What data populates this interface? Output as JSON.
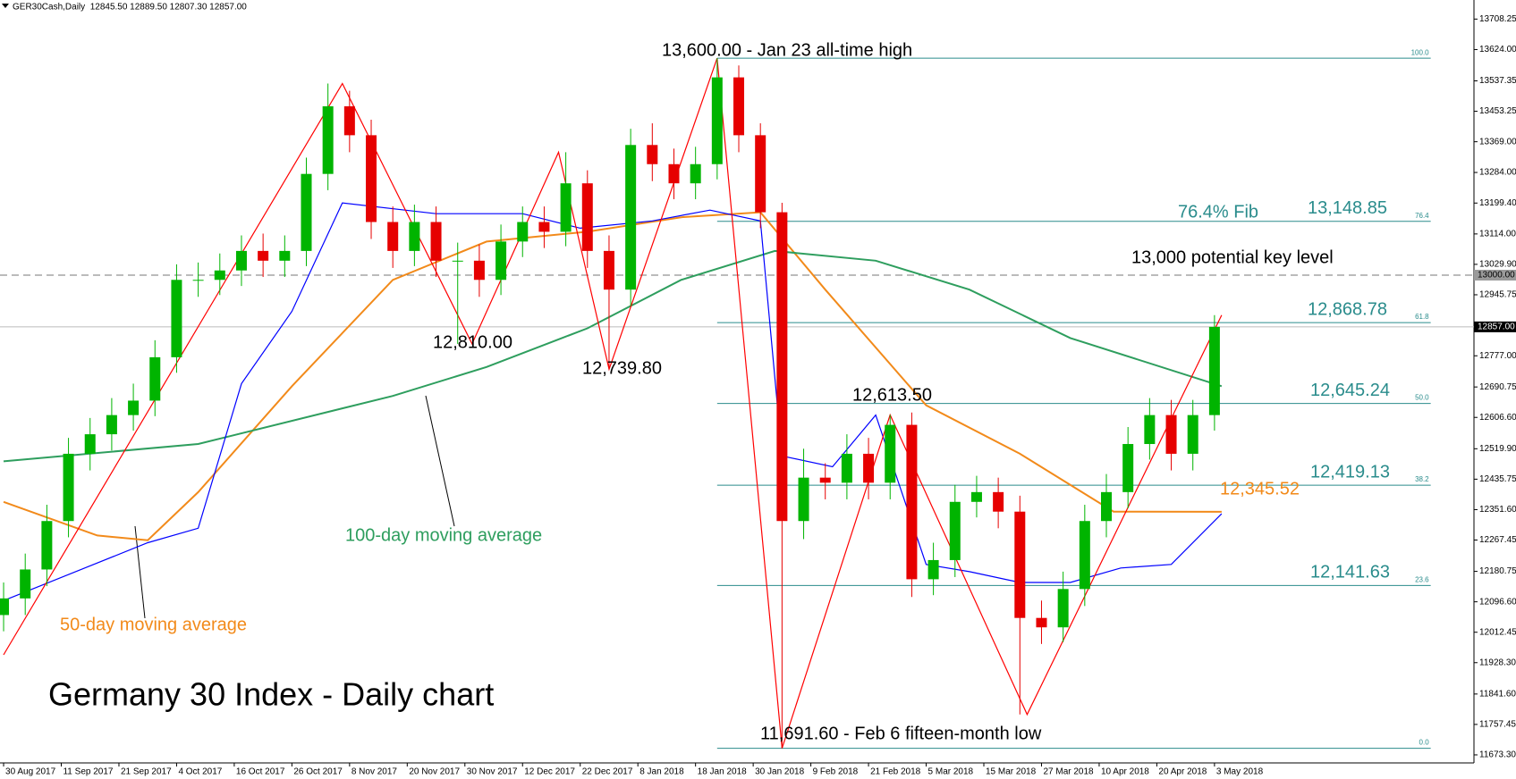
{
  "chart_data": {
    "type": "candlestick",
    "title": "Germany 30 Index - Daily chart",
    "header": "GER30Cash,Daily  12845.50 12889.50 12807.30 12857.00",
    "up_color": "#00b400",
    "down_color": "#e60000",
    "x": [
      0,
      3,
      6,
      9,
      12,
      15,
      18,
      21,
      24,
      27,
      30,
      33,
      36,
      39,
      42,
      45,
      48,
      51,
      54,
      57,
      60,
      63,
      66,
      69,
      72,
      75,
      78,
      81,
      84,
      87,
      90,
      93,
      96,
      99,
      102,
      105,
      108,
      111,
      114,
      117,
      120,
      123,
      126,
      129,
      132,
      135,
      138,
      141,
      144,
      147,
      150,
      153,
      156,
      159,
      162,
      165,
      168
    ],
    "open": [
      12060,
      12106,
      12186,
      12320,
      12506,
      12560,
      12613,
      12653,
      12773,
      12987,
      12987,
      13013,
      13067,
      13040,
      13067,
      13280,
      13467,
      13387,
      13147,
      13067,
      13147,
      13040,
      13040,
      12987,
      13093,
      13147,
      13120,
      13254,
      13067,
      12960,
      13360,
      13307,
      13254,
      13307,
      13547,
      13387,
      13174,
      12320,
      12440,
      12426,
      12506,
      12426,
      12586,
      12159,
      12212,
      12373,
      12400,
      12346,
      12052,
      12026,
      12132,
      12320,
      12400,
      12533,
      12613,
      12506,
      12613
    ],
    "high": [
      12150,
      12230,
      12365,
      12550,
      12605,
      12660,
      12700,
      12820,
      13030,
      13035,
      13060,
      13110,
      13115,
      13110,
      13325,
      13530,
      13510,
      13430,
      13190,
      13195,
      13190,
      13090,
      13085,
      13140,
      13190,
      13190,
      13340,
      13290,
      13110,
      13405,
      13420,
      13350,
      13355,
      13600,
      13580,
      13420,
      13200,
      12520,
      12480,
      12560,
      12550,
      12613.5,
      12620,
      12260,
      12420,
      12445,
      12440,
      12390,
      12100,
      12180,
      12365,
      12450,
      12580,
      12660,
      12655,
      12655,
      12889.5
    ],
    "low": [
      12015,
      12060,
      12140,
      12275,
      12460,
      12515,
      12570,
      12610,
      12730,
      12940,
      12945,
      12970,
      12995,
      12995,
      13025,
      13235,
      13340,
      13100,
      13020,
      13025,
      12995,
      12810,
      12940,
      12945,
      13050,
      13075,
      13080,
      13020,
      12739.8,
      12915,
      13260,
      13210,
      13210,
      13265,
      13340,
      13130,
      11691.6,
      12270,
      12380,
      12380,
      12380,
      12380,
      12110,
      12115,
      12165,
      12330,
      12300,
      11785,
      11980,
      11985,
      12085,
      12275,
      12355,
      12490,
      12460,
      12460,
      12570
    ],
    "close": [
      12106,
      12186,
      12320,
      12506,
      12560,
      12613,
      12653,
      12773,
      12987,
      12987,
      13013,
      13067,
      13040,
      13067,
      13280,
      13467,
      13387,
      13147,
      13067,
      13147,
      13040,
      13040,
      12987,
      13093,
      13147,
      13120,
      13254,
      13067,
      12960,
      13360,
      13307,
      13254,
      13307,
      13547,
      13387,
      13174,
      12320,
      12440,
      12426,
      12506,
      12426,
      12586,
      12159,
      12212,
      12373,
      12400,
      12346,
      12052,
      12026,
      12132,
      12320,
      12400,
      12533,
      12613,
      12506,
      12613,
      12857
    ],
    "series": [
      {
        "name": "50-day moving average",
        "color": "#f28a1a",
        "x": [
          0,
          13,
          20,
          27,
          40,
          54,
          67,
          81,
          94,
          105,
          114,
          128,
          141,
          154,
          169
        ],
        "values": [
          12373,
          12280,
          12267,
          12400,
          12693,
          12987,
          13093,
          13120,
          13160,
          13174,
          12960,
          12640,
          12506,
          12346,
          12345.52
        ],
        "end_label": "12,345.52"
      },
      {
        "name": "100-day moving average",
        "color": "#2e9e5e",
        "x": [
          0,
          27,
          54,
          67,
          81,
          94,
          107,
          121,
          134,
          148,
          169
        ],
        "values": [
          12485,
          12533,
          12666,
          12746,
          12853,
          12987,
          13067,
          13040,
          12960,
          12826,
          12693
        ]
      },
      {
        "color": "#0000ff",
        "x": [
          0,
          20,
          27,
          33,
          40,
          47,
          60,
          72,
          80,
          90,
          98,
          105,
          108,
          115,
          121,
          128,
          134,
          141,
          148,
          155,
          162,
          169
        ],
        "values": [
          12100,
          12260,
          12300,
          12700,
          12900,
          13200,
          13170,
          13170,
          13130,
          13150,
          13180,
          13150,
          12500,
          12470,
          12613,
          12200,
          12180,
          12150,
          12150,
          12190,
          12200,
          12340
        ]
      },
      {
        "color": "#ff0000",
        "x": [
          0,
          47,
          65,
          77,
          84,
          99,
          108,
          123,
          142,
          169
        ],
        "values": [
          11950,
          13530,
          12810,
          13340,
          12739.8,
          13600,
          11691.6,
          12613.5,
          11785,
          12889.5
        ]
      }
    ],
    "fib_levels": [
      {
        "ratio": "100.0",
        "value": 13600
      },
      {
        "ratio": "76.4",
        "value": 13148.85,
        "value_label": "13,148.85"
      },
      {
        "ratio": "61.8",
        "value": 12868.78,
        "value_label": "12,868.78"
      },
      {
        "ratio": "50.0",
        "value": 12645.24,
        "value_label": "12,645.24"
      },
      {
        "ratio": "38.2",
        "value": 12419.13,
        "value_label": "12,419.13"
      },
      {
        "ratio": "23.6",
        "value": 12141.63,
        "value_label": "12,141.63"
      },
      {
        "ratio": "0.0",
        "value": 11691.6
      }
    ],
    "fib_color": "#2a8c8c",
    "key_level": {
      "value": 13000,
      "label": "13000.00",
      "text": "13,000 potential key level"
    },
    "last_price": {
      "value": 12857,
      "label": "12857.00"
    },
    "annotations": [
      "13,600.00 - Jan 23 all-time high",
      "76.4% Fib",
      "12,810.00",
      "12,739.80",
      "12,613.50",
      "11,691.60 - Feb 6 fifteen-month low"
    ],
    "xlim": [
      -0.5,
      204
    ],
    "ylim": [
      11651,
      13761
    ],
    "xticks": [
      {
        "value": 0,
        "label": "30 Aug 2017"
      },
      {
        "value": 8,
        "label": "11 Sep 2017"
      },
      {
        "value": 16,
        "label": "21 Sep 2017"
      },
      {
        "value": 24,
        "label": "4 Oct 2017"
      },
      {
        "value": 32,
        "label": "16 Oct 2017"
      },
      {
        "value": 40,
        "label": "26 Oct 2017"
      },
      {
        "value": 48,
        "label": "8 Nov 2017"
      },
      {
        "value": 56,
        "label": "20 Nov 2017"
      },
      {
        "value": 64,
        "label": "30 Nov 2017"
      },
      {
        "value": 72,
        "label": "12 Dec 2017"
      },
      {
        "value": 80,
        "label": "22 Dec 2017"
      },
      {
        "value": 88,
        "label": "8 Jan 2018"
      },
      {
        "value": 96,
        "label": "18 Jan 2018"
      },
      {
        "value": 104,
        "label": "30 Jan 2018"
      },
      {
        "value": 112,
        "label": "9 Feb 2018"
      },
      {
        "value": 120,
        "label": "21 Feb 2018"
      },
      {
        "value": 128,
        "label": "5 Mar 2018"
      },
      {
        "value": 136,
        "label": "15 Mar 2018"
      },
      {
        "value": 144,
        "label": "27 Mar 2018"
      },
      {
        "value": 152,
        "label": "10 Apr 2018"
      },
      {
        "value": 160,
        "label": "20 Apr 2018"
      },
      {
        "value": 168,
        "label": "3 May 2018"
      }
    ],
    "yticks": [
      13708.25,
      {
        "value": 13624,
        "label": "13624.00"
      },
      13537.35,
      13453.25,
      {
        "value": 13369,
        "label": "13369.00"
      },
      {
        "value": 13284,
        "label": "13284.00"
      },
      {
        "value": 13199.4,
        "label": "13199.40"
      },
      {
        "value": 13114,
        "label": "13114.00"
      },
      {
        "value": 13029.9,
        "label": "13029.90"
      },
      12945.75,
      {
        "value": 12777,
        "label": "12777.00"
      },
      12690.75,
      {
        "value": 12606.6,
        "label": "12606.60"
      },
      {
        "value": 12519.9,
        "label": "12519.90"
      },
      12435.75,
      {
        "value": 12351.6,
        "label": "12351.60"
      },
      12267.45,
      12180.75,
      {
        "value": 12096.6,
        "label": "12096.60"
      },
      12012.45,
      {
        "value": 11928.3,
        "label": "11928.30"
      },
      {
        "value": 11841.6,
        "label": "11841.60"
      },
      11757.45,
      {
        "value": 11673.3,
        "label": "11673.30"
      }
    ]
  }
}
